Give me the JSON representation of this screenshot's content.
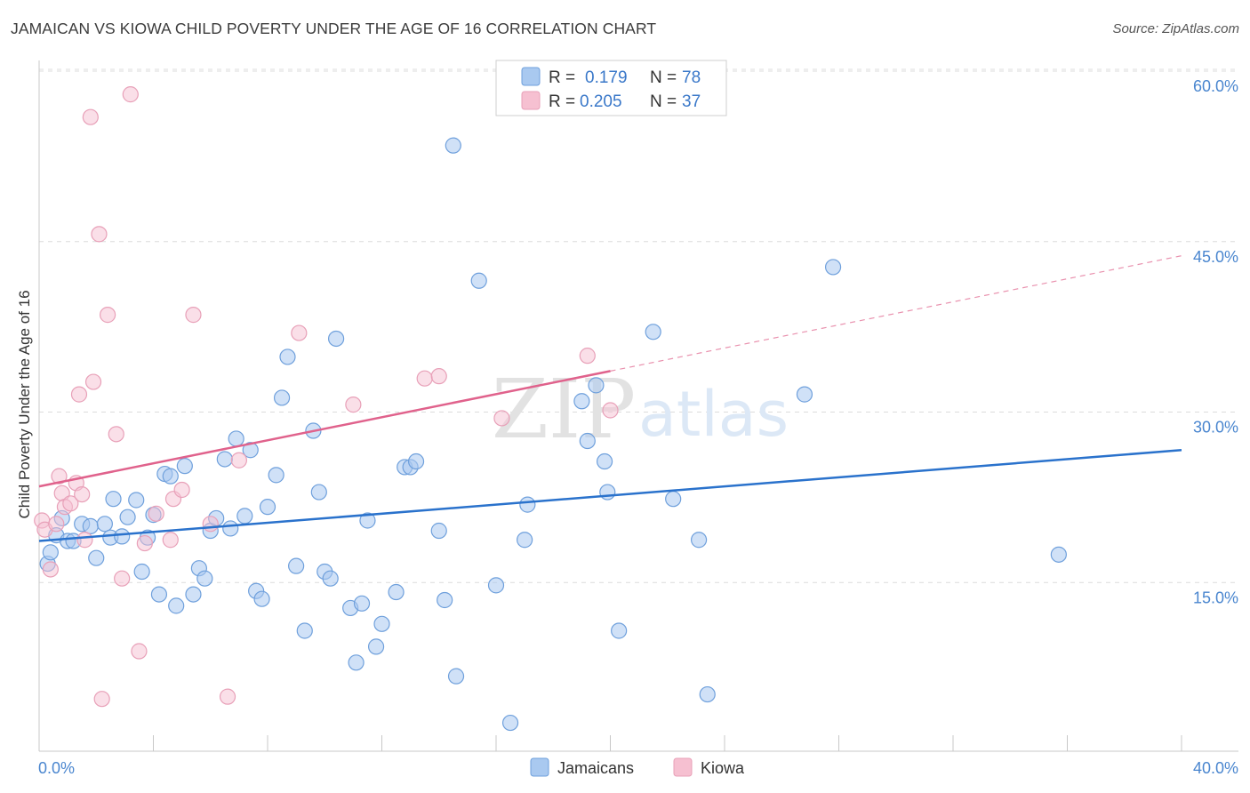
{
  "title": "JAMAICAN VS KIOWA CHILD POVERTY UNDER THE AGE OF 16 CORRELATION CHART",
  "source": "Source: ZipAtlas.com",
  "watermark": {
    "zip": "ZIP",
    "atlas": "atlas"
  },
  "colors": {
    "jamaicans_fill": "#a9c9f0",
    "jamaicans_stroke": "#6fa0dc",
    "jamaicans_line": "#2a72cc",
    "kiowa_fill": "#f6c0d1",
    "kiowa_stroke": "#e8a0b8",
    "kiowa_line": "#e0628c",
    "grid": "#dcdcdc",
    "tick_label": "#4a86cf"
  },
  "legend": {
    "rows": [
      {
        "r_label": "R =",
        "r_value": "0.179",
        "n_label": "N =",
        "n_value": "78"
      },
      {
        "r_label": "R =",
        "r_value": "0.205",
        "n_label": "N =",
        "n_value": "37"
      }
    ]
  },
  "chart_data": {
    "type": "scatter",
    "title": "JAMAICAN VS KIOWA CHILD POVERTY UNDER THE AGE OF 16 CORRELATION CHART",
    "xlabel": "",
    "ylabel": "Child Poverty Under the Age of 16",
    "xlim": [
      0,
      40
    ],
    "ylim": [
      0,
      60
    ],
    "x_tick_labels": [
      "0.0%",
      "40.0%"
    ],
    "y_ticks": [
      15,
      30,
      45,
      60
    ],
    "y_tick_labels": [
      "15.0%",
      "30.0%",
      "45.0%",
      "60.0%"
    ],
    "grid": true,
    "legend_position": "top-center",
    "series": [
      {
        "name": "Jamaicans",
        "r": 0.179,
        "n": 78,
        "trend": {
          "x": [
            0,
            40
          ],
          "y": [
            18.5,
            26.5
          ],
          "dashed_from": null
        },
        "points": [
          [
            0.3,
            16.5
          ],
          [
            0.4,
            17.5
          ],
          [
            0.6,
            19
          ],
          [
            0.8,
            20.5
          ],
          [
            1.0,
            18.5
          ],
          [
            1.2,
            18.5
          ],
          [
            1.5,
            20
          ],
          [
            1.8,
            19.8
          ],
          [
            2.0,
            17
          ],
          [
            2.3,
            20
          ],
          [
            2.5,
            18.8
          ],
          [
            2.6,
            22.2
          ],
          [
            2.9,
            18.9
          ],
          [
            3.1,
            20.6
          ],
          [
            3.4,
            22.1
          ],
          [
            3.6,
            15.8
          ],
          [
            3.8,
            18.8
          ],
          [
            4.0,
            20.8
          ],
          [
            4.2,
            13.8
          ],
          [
            4.4,
            24.4
          ],
          [
            4.6,
            24.2
          ],
          [
            4.8,
            12.8
          ],
          [
            5.1,
            25.1
          ],
          [
            5.4,
            13.8
          ],
          [
            5.6,
            16.1
          ],
          [
            5.8,
            15.2
          ],
          [
            6.0,
            19.4
          ],
          [
            6.2,
            20.5
          ],
          [
            6.5,
            25.7
          ],
          [
            6.7,
            19.6
          ],
          [
            6.9,
            27.5
          ],
          [
            7.2,
            20.7
          ],
          [
            7.4,
            26.5
          ],
          [
            7.6,
            14.1
          ],
          [
            7.8,
            13.4
          ],
          [
            8.0,
            21.5
          ],
          [
            8.3,
            24.3
          ],
          [
            8.5,
            31.1
          ],
          [
            8.7,
            34.7
          ],
          [
            9.0,
            16.3
          ],
          [
            9.3,
            10.6
          ],
          [
            9.6,
            28.2
          ],
          [
            9.8,
            22.8
          ],
          [
            10.0,
            15.8
          ],
          [
            10.2,
            15.2
          ],
          [
            10.4,
            36.3
          ],
          [
            10.9,
            12.6
          ],
          [
            11.1,
            7.8
          ],
          [
            11.3,
            13
          ],
          [
            11.5,
            20.3
          ],
          [
            11.8,
            9.2
          ],
          [
            12.0,
            11.2
          ],
          [
            12.5,
            14
          ],
          [
            12.8,
            25
          ],
          [
            13.0,
            25
          ],
          [
            13.2,
            25.5
          ],
          [
            14.0,
            19.4
          ],
          [
            14.2,
            13.3
          ],
          [
            14.5,
            53.3
          ],
          [
            14.6,
            6.6
          ],
          [
            15.4,
            41.4
          ],
          [
            16.0,
            14.6
          ],
          [
            16.5,
            2.5
          ],
          [
            17.0,
            18.6
          ],
          [
            17.1,
            21.7
          ],
          [
            19.0,
            30.8
          ],
          [
            19.2,
            27.3
          ],
          [
            19.5,
            32.2
          ],
          [
            19.8,
            25.5
          ],
          [
            19.9,
            22.8
          ],
          [
            20.3,
            10.6
          ],
          [
            21.5,
            36.9
          ],
          [
            22.2,
            22.2
          ],
          [
            23.1,
            18.6
          ],
          [
            23.4,
            5
          ],
          [
            26.8,
            31.4
          ],
          [
            27.8,
            42.6
          ],
          [
            35.7,
            17.3
          ]
        ]
      },
      {
        "name": "Kiowa",
        "r": 0.205,
        "n": 37,
        "trend": {
          "x": [
            0,
            40
          ],
          "y": [
            23.3,
            43.6
          ],
          "dashed_from": 20
        },
        "points": [
          [
            0.1,
            20.3
          ],
          [
            0.2,
            19.5
          ],
          [
            0.4,
            16
          ],
          [
            0.6,
            20
          ],
          [
            0.7,
            24.2
          ],
          [
            0.8,
            22.7
          ],
          [
            0.9,
            21.5
          ],
          [
            1.1,
            21.8
          ],
          [
            1.3,
            23.6
          ],
          [
            1.4,
            31.4
          ],
          [
            1.5,
            22.6
          ],
          [
            1.6,
            18.6
          ],
          [
            1.8,
            55.8
          ],
          [
            1.9,
            32.5
          ],
          [
            2.1,
            45.5
          ],
          [
            2.2,
            4.6
          ],
          [
            2.4,
            38.4
          ],
          [
            2.7,
            27.9
          ],
          [
            2.9,
            15.2
          ],
          [
            3.2,
            57.8
          ],
          [
            3.5,
            8.8
          ],
          [
            3.7,
            18.3
          ],
          [
            4.1,
            20.9
          ],
          [
            4.6,
            18.6
          ],
          [
            4.7,
            22.2
          ],
          [
            5.0,
            23
          ],
          [
            5.4,
            38.4
          ],
          [
            6.0,
            20
          ],
          [
            6.6,
            4.8
          ],
          [
            7.0,
            25.6
          ],
          [
            9.1,
            36.8
          ],
          [
            11.0,
            30.5
          ],
          [
            13.5,
            32.8
          ],
          [
            14.0,
            33
          ],
          [
            16.2,
            29.3
          ],
          [
            19.2,
            34.8
          ],
          [
            20.0,
            30
          ]
        ]
      }
    ]
  },
  "bottom_legend": [
    {
      "label": "Jamaicans"
    },
    {
      "label": "Kiowa"
    }
  ]
}
